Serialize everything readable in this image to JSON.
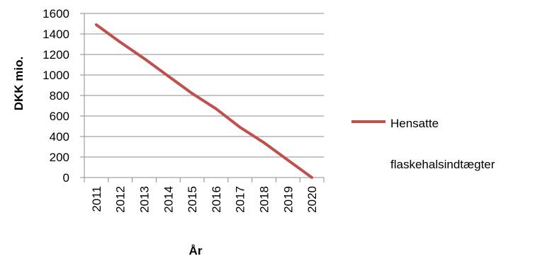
{
  "chart_data": {
    "type": "line",
    "categories": [
      "2011",
      "2012",
      "2013",
      "2014",
      "2015",
      "2016",
      "2017",
      "2018",
      "2019",
      "2020"
    ],
    "series": [
      {
        "name": "Hensatte flaskehalsindtægter",
        "name_lines": [
          "Hensatte",
          "flaskehalsindtægter"
        ],
        "values": [
          1490,
          1320,
          1160,
          990,
          820,
          670,
          490,
          340,
          170,
          0
        ],
        "color": "#c0504d"
      }
    ],
    "xlabel": "År",
    "ylabel": "DKK mio.",
    "ylim": [
      0,
      1600
    ],
    "yticks": [
      "0",
      "200",
      "400",
      "600",
      "800",
      "1000",
      "1200",
      "1400",
      "1600"
    ],
    "grid": true,
    "legend": "right"
  }
}
